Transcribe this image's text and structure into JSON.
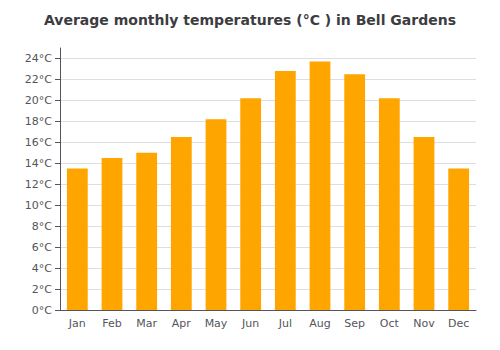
{
  "chart_data": {
    "type": "bar",
    "title": "Average monthly temperatures (°C ) in Bell Gardens",
    "categories": [
      "Jan",
      "Feb",
      "Mar",
      "Apr",
      "May",
      "Jun",
      "Jul",
      "Aug",
      "Sep",
      "Oct",
      "Nov",
      "Dec"
    ],
    "values": [
      13.5,
      14.5,
      15.0,
      16.5,
      18.2,
      20.2,
      22.8,
      23.7,
      22.5,
      20.2,
      16.5,
      13.5
    ],
    "color": "#FFA500",
    "ylim": [
      0,
      25
    ],
    "yticks": [
      {
        "value": 0,
        "label": "0°C"
      },
      {
        "value": 2,
        "label": "2°C"
      },
      {
        "value": 4,
        "label": "4°C"
      },
      {
        "value": 6,
        "label": "6°C"
      },
      {
        "value": 8,
        "label": "8°C"
      },
      {
        "value": 10,
        "label": "10°C"
      },
      {
        "value": 12,
        "label": "12°C"
      },
      {
        "value": 14,
        "label": "14°C"
      },
      {
        "value": 16,
        "label": "16°C"
      },
      {
        "value": 18,
        "label": "18°C"
      },
      {
        "value": 20,
        "label": "20°C"
      },
      {
        "value": 22,
        "label": "22°C"
      },
      {
        "value": 24,
        "label": "24°C"
      }
    ],
    "grid": true
  }
}
